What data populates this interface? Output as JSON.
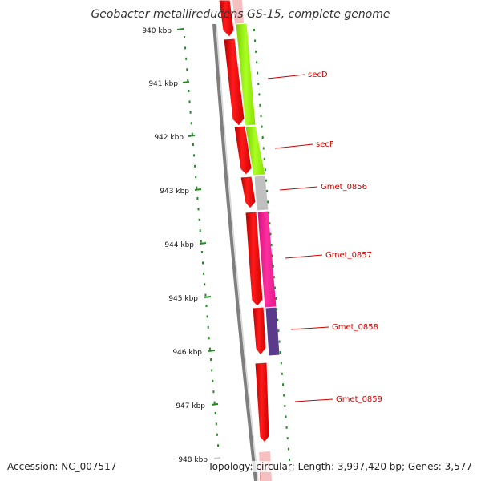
{
  "title": "Geobacter metallireducens GS-15, complete genome",
  "footer": {
    "accession": "Accession: NC_007517",
    "topology": "Topology: circular; Length: 3,997,420 bp; Genes: 3,577"
  },
  "ruler_ticks": [
    "940 kbp",
    "941 kbp",
    "942 kbp",
    "943 kbp",
    "944 kbp",
    "945 kbp",
    "946 kbp",
    "947 kbp",
    "948 kbp"
  ],
  "colors": {
    "cds": "#ff0000",
    "backbone": "#808080",
    "ruler": "#228b22",
    "label": "#cc0000",
    "secD_gene": "#99ff00",
    "Gmet_0856_gene": "#c0c0c0",
    "Gmet_0857_gene": "#ff1493",
    "Gmet_0858_gene": "#5b3a8c"
  },
  "gene_labels": [
    "secD",
    "secF",
    "Gmet_0856",
    "Gmet_0857",
    "Gmet_0858",
    "Gmet_0859"
  ]
}
